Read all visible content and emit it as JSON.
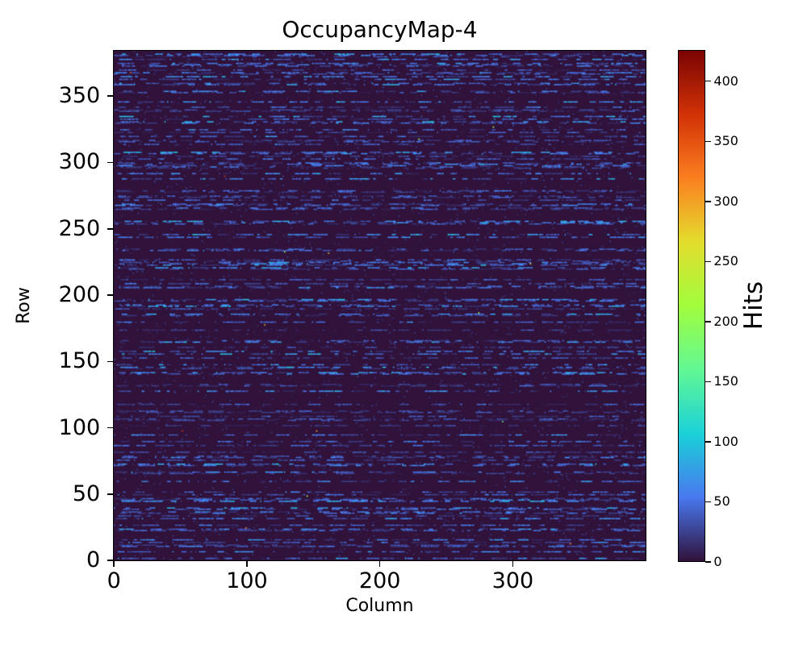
{
  "chart_data": {
    "type": "heatmap",
    "title": "OccupancyMap-4",
    "xlabel": "Column",
    "ylabel": "Row",
    "x_range": [
      0,
      400
    ],
    "y_range": [
      0,
      384
    ],
    "xticks": [
      0,
      100,
      200,
      300
    ],
    "yticks": [
      0,
      50,
      100,
      150,
      200,
      250,
      300,
      350
    ],
    "grid": false,
    "colorbar": {
      "label": "Hits",
      "ticks": [
        0,
        50,
        100,
        150,
        200,
        250,
        300,
        350,
        400
      ],
      "vmin": 0,
      "vmax": 426,
      "colormap": "turbo",
      "stops": [
        [
          0.0,
          "#30123b"
        ],
        [
          0.125,
          "#4978ef"
        ],
        [
          0.25,
          "#1ad1d8"
        ],
        [
          0.375,
          "#61f894"
        ],
        [
          0.5,
          "#a1fd3d"
        ],
        [
          0.625,
          "#e3dd2d"
        ],
        [
          0.75,
          "#fb7f20"
        ],
        [
          0.875,
          "#d23206"
        ],
        [
          1.0,
          "#7a0403"
        ]
      ]
    },
    "zero_value_color": "#30123b",
    "pattern": {
      "description": "mostly-zero occupancy map: horizontal blue dashes of low hit counts on dark purple background, rare hot pixels",
      "seed": 77,
      "row_active_probability": 0.36,
      "dash_value_range": [
        9,
        60
      ],
      "faint_singles": 2400,
      "faint_value_range": [
        6,
        28
      ],
      "hot_pixels": 15,
      "hot_value_range": [
        150,
        426
      ]
    }
  }
}
